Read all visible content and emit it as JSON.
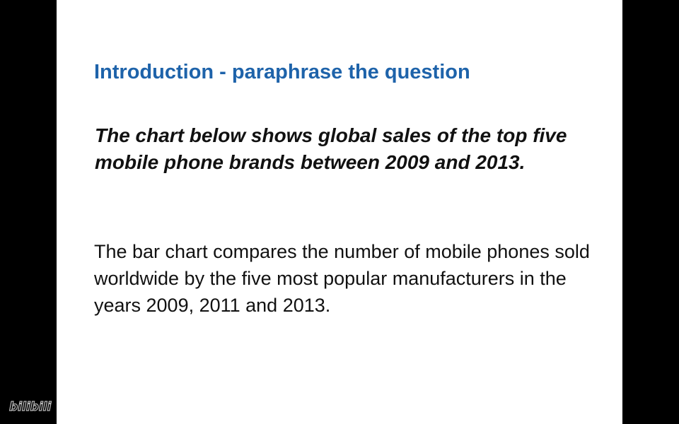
{
  "slide": {
    "title": "Introduction - paraphrase the question",
    "question": "The chart below shows global sales of the top five mobile phone brands between 2009 and 2013.",
    "paraphrase": "The bar chart compares the number of mobile phones sold worldwide by the five most popular manufacturers in the years 2009, 2011 and 2013."
  },
  "watermark": {
    "text": "bilibili",
    "icon": "bilibili-logo-icon"
  },
  "colors": {
    "title": "#1e63aa",
    "body_text": "#111111",
    "slide_background": "#ffffff",
    "letterbox": "#000000"
  }
}
